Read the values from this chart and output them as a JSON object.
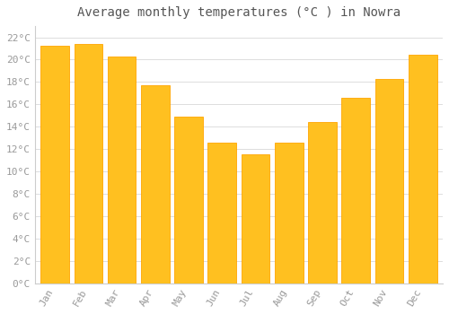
{
  "title": "Average monthly temperatures (°C ) in Nowra",
  "months": [
    "Jan",
    "Feb",
    "Mar",
    "Apr",
    "May",
    "Jun",
    "Jul",
    "Aug",
    "Sep",
    "Oct",
    "Nov",
    "Dec"
  ],
  "values": [
    21.2,
    21.4,
    20.3,
    17.7,
    14.9,
    12.6,
    11.5,
    12.6,
    14.4,
    16.6,
    18.3,
    20.4
  ],
  "bar_color_face": "#FFC020",
  "bar_color_edge": "#FFA500",
  "background_color": "#FFFFFF",
  "grid_color": "#DDDDDD",
  "text_color": "#999999",
  "ylim": [
    0,
    23
  ],
  "ytick_step": 2,
  "title_fontsize": 10,
  "tick_fontsize": 8,
  "bar_width": 0.85
}
